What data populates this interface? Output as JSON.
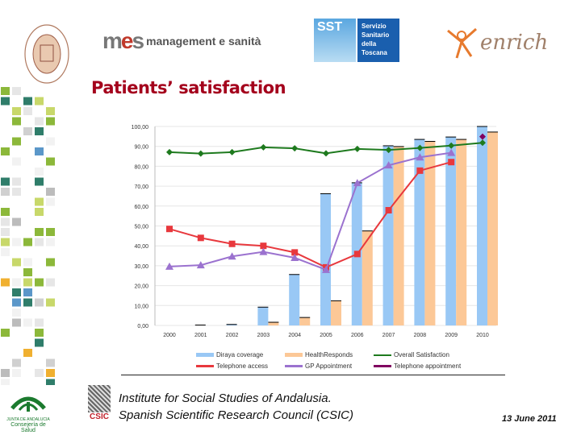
{
  "header": {
    "logos": {
      "sssa": "SCUOLA SUPERIORE SANT'ANNA · PISA",
      "mes": "management e sanità",
      "sst": [
        "SST",
        "Servizio",
        "Sanitario",
        "della",
        "Toscana"
      ],
      "enrich": "enrich"
    }
  },
  "title": "Patients’ satisfaction",
  "chart_data": {
    "type": "bar+line",
    "categories": [
      "2000",
      "2001",
      "2002",
      "2003",
      "2004",
      "2005",
      "2006",
      "2007",
      "2008",
      "2009",
      "2010"
    ],
    "ylim": [
      0,
      100
    ],
    "yticks": [
      "0,00",
      "10,00",
      "20,00",
      "30,00",
      "40,00",
      "50,00",
      "60,00",
      "70,00",
      "80,00",
      "90,00",
      "100,00"
    ],
    "grid": true,
    "legend_placement": "bottom",
    "bar_series": [
      {
        "name": "Diraya coverage",
        "color": "#99c8f5",
        "values": [
          0,
          0.2,
          0.5,
          9.2,
          25.6,
          66.2,
          71.7,
          90.3,
          93.5,
          94.7,
          100
        ]
      },
      {
        "name": "HealthResponds",
        "color": "#fcc897",
        "values": [
          0,
          0,
          0,
          1.6,
          4.0,
          12.4,
          47.5,
          89.9,
          92.5,
          93.5,
          97.2
        ]
      }
    ],
    "line_series": [
      {
        "name": "Overall Satisfaction",
        "color": "#1e7a1e",
        "marker": "diamond",
        "values": [
          87.1,
          86.4,
          87.1,
          89.5,
          89.0,
          86.5,
          88.7,
          88.2,
          89.2,
          90.4,
          91.8
        ]
      },
      {
        "name": "Telephone access",
        "color": "#e8383d",
        "marker": "square",
        "values": [
          48.5,
          44.0,
          41.0,
          40.0,
          36.7,
          29.2,
          35.9,
          57.9,
          77.8,
          82.1,
          null
        ]
      },
      {
        "name": "GP Appointment",
        "color": "#9b72cf",
        "marker": "triangle",
        "values": [
          29.6,
          30.3,
          34.7,
          37.0,
          34.0,
          28.0,
          71.6,
          80.5,
          84.5,
          86.8,
          null
        ]
      },
      {
        "name": "Telephone appointment",
        "color": "#800060",
        "marker": "diamond",
        "values": [
          null,
          null,
          null,
          null,
          null,
          null,
          null,
          null,
          null,
          null,
          94.9
        ]
      }
    ]
  },
  "footer": {
    "junta": [
      "JUNTA DE ANDALUCIA",
      "Consejería de Salud"
    ],
    "csic": "CSIC",
    "institute_line1": "Institute for Social Studies of Andalusia.",
    "institute_line2": "Spanish Scientific Research Council (CSIC)",
    "date": "13 June 2011"
  }
}
